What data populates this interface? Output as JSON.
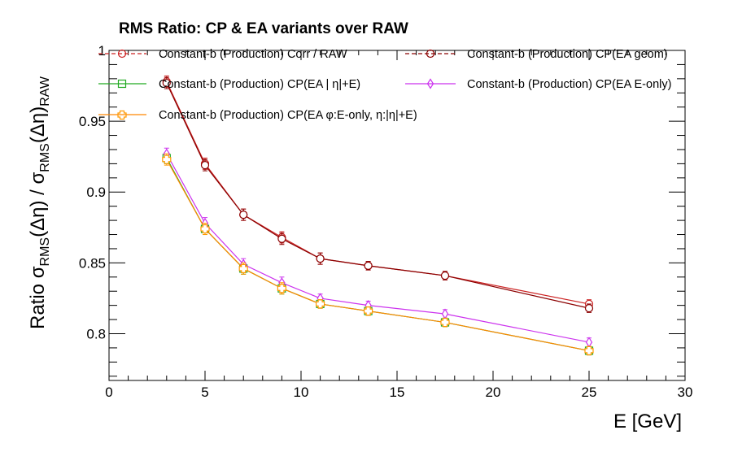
{
  "chart_data": {
    "type": "line",
    "title": "RMS Ratio: CP & EA variants over RAW",
    "xlabel": "E  [GeV]",
    "ylabel": {
      "prefix": "Ratio  σ",
      "sub1": "RMS",
      "mid": "(Δη) / σ",
      "sub2": "RMS",
      "mid2": "(Δη)",
      "sub3": "RAW"
    },
    "xlim": [
      0,
      30
    ],
    "ylim": [
      0.767,
      1.0
    ],
    "xticks": [
      0,
      5,
      10,
      15,
      20,
      25,
      30
    ],
    "xtick_labels": [
      "0",
      "5",
      "10",
      "15",
      "20",
      "25",
      "30"
    ],
    "yticks": [
      0.8,
      0.85,
      0.9,
      0.95,
      1.0
    ],
    "ytick_labels": [
      "0.8",
      "0.85",
      "0.9",
      "0.95",
      "1"
    ],
    "grid": false,
    "legend_placement": "top",
    "x": [
      3,
      5,
      7,
      9,
      11,
      13.5,
      17.5,
      25
    ],
    "series": [
      {
        "name": "Constant-b (Production) Corr / RAW",
        "color": "#cc2222",
        "line_color": "#cc2222",
        "marker": "circle",
        "values": [
          0.978,
          0.92,
          0.884,
          0.868,
          0.853,
          0.848,
          0.841,
          0.821
        ],
        "errors": [
          0.004,
          0.004,
          0.004,
          0.004,
          0.004,
          0.003,
          0.003,
          0.003
        ]
      },
      {
        "name": "Constant-b (Production) CP(EA geom)",
        "color": "#8b0000",
        "line_color": "#8b0000",
        "marker": "circle",
        "values": [
          0.977,
          0.919,
          0.884,
          0.867,
          0.853,
          0.848,
          0.841,
          0.818
        ],
        "errors": [
          0.004,
          0.004,
          0.004,
          0.004,
          0.004,
          0.003,
          0.003,
          0.003
        ]
      },
      {
        "name": "Constant-b (Production) CP(EA |   η|+E)",
        "color": "#22aa22",
        "line_color": "#22aa22",
        "marker": "square",
        "values": [
          0.924,
          0.874,
          0.846,
          0.832,
          0.821,
          0.816,
          0.808,
          0.788
        ],
        "errors": [
          0.004,
          0.004,
          0.004,
          0.004,
          0.003,
          0.003,
          0.003,
          0.003
        ]
      },
      {
        "name": "Constant-b (Production) CP(EA E-only)",
        "color": "#cc33ee",
        "line_color": "#cc33ee",
        "marker": "diamond",
        "values": [
          0.927,
          0.878,
          0.849,
          0.836,
          0.825,
          0.82,
          0.814,
          0.794
        ],
        "errors": [
          0.004,
          0.004,
          0.004,
          0.004,
          0.003,
          0.003,
          0.003,
          0.003
        ]
      },
      {
        "name": "Constant-b (Production) CP(EA    φ:E-only,  η:|η|+E)",
        "color": "#ff9900",
        "line_color": "#ff8800",
        "marker": "cross",
        "values": [
          0.923,
          0.874,
          0.846,
          0.832,
          0.821,
          0.816,
          0.808,
          0.788
        ],
        "errors": [
          0.004,
          0.004,
          0.004,
          0.004,
          0.003,
          0.003,
          0.003,
          0.003
        ]
      }
    ]
  }
}
